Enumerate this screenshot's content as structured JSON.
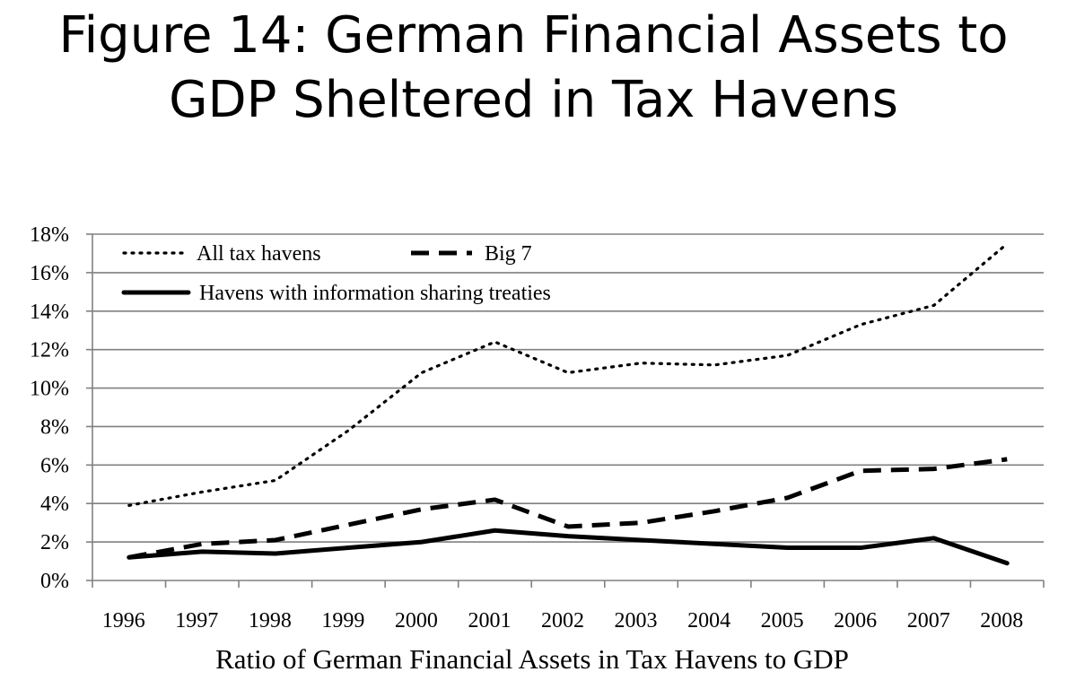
{
  "title_lines": [
    "Figure 14: German Financial Assets to",
    "GDP Sheltered in Tax Havens"
  ],
  "chart_data": {
    "type": "line",
    "title": "Figure 14: German Financial Assets to GDP Sheltered in Tax Havens",
    "xlabel": "Ratio of German Financial Assets in Tax Havens to GDP",
    "ylabel": "",
    "x": [
      "1996",
      "1997",
      "1998",
      "1999",
      "2000",
      "2001",
      "2002",
      "2003",
      "2004",
      "2005",
      "2006",
      "2007",
      "2008"
    ],
    "ylim": [
      0,
      18
    ],
    "yticks": [
      0,
      2,
      4,
      6,
      8,
      10,
      12,
      14,
      16,
      18
    ],
    "ytick_labels": [
      "0%",
      "2%",
      "4%",
      "6%",
      "8%",
      "10%",
      "12%",
      "14%",
      "16%",
      "18%"
    ],
    "grid": true,
    "legend_position": "top-left",
    "series": [
      {
        "name": "All tax havens",
        "style": "dotted",
        "color": "#000000",
        "values": [
          3.9,
          4.6,
          5.2,
          7.8,
          10.8,
          12.4,
          10.8,
          11.3,
          11.2,
          11.7,
          13.3,
          14.3,
          17.5
        ]
      },
      {
        "name": "Big 7",
        "style": "dashed",
        "color": "#000000",
        "values": [
          1.2,
          1.9,
          2.1,
          2.9,
          3.7,
          4.2,
          2.8,
          3.0,
          3.6,
          4.3,
          5.7,
          5.8,
          6.3
        ]
      },
      {
        "name": "Havens with information sharing treaties",
        "style": "solid",
        "color": "#000000",
        "values": [
          1.2,
          1.5,
          1.4,
          1.7,
          2.0,
          2.6,
          2.3,
          2.1,
          1.9,
          1.7,
          1.7,
          2.2,
          0.9
        ]
      }
    ]
  }
}
